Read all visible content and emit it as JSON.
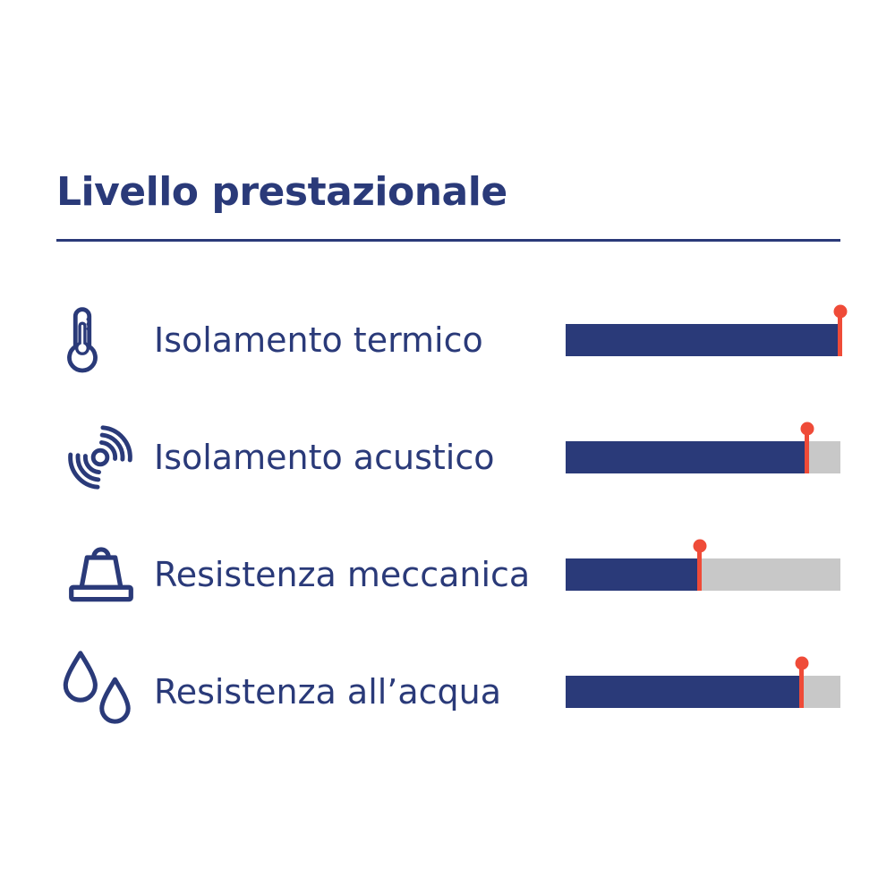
{
  "title": "Livello prestazionale",
  "colors": {
    "navy": "#2A3A79",
    "red": "#EF4B38",
    "track_gray": "#C8C8C8",
    "background": "#FFFFFF"
  },
  "rows": [
    {
      "icon": "thermometer-icon",
      "label": "Isolamento termico",
      "value": 100
    },
    {
      "icon": "sound-waves-icon",
      "label": "Isolamento acustico",
      "value": 88
    },
    {
      "icon": "weight-icon",
      "label": "Resistenza meccanica",
      "value": 49
    },
    {
      "icon": "water-drops-icon",
      "label": "Resistenza all’acqua",
      "value": 86
    }
  ],
  "chart_data": {
    "type": "bar",
    "orientation": "horizontal",
    "title": "Livello prestazionale",
    "categories": [
      "Isolamento termico",
      "Isolamento acustico",
      "Resistenza meccanica",
      "Resistenza all’acqua"
    ],
    "values": [
      100,
      88,
      49,
      86
    ],
    "value_range": [
      0,
      100
    ],
    "bar_color": "#2A3A79",
    "track_color": "#C8C8C8",
    "marker_color": "#EF4B38",
    "marker_style": "pin",
    "legend": false,
    "grid": false
  }
}
